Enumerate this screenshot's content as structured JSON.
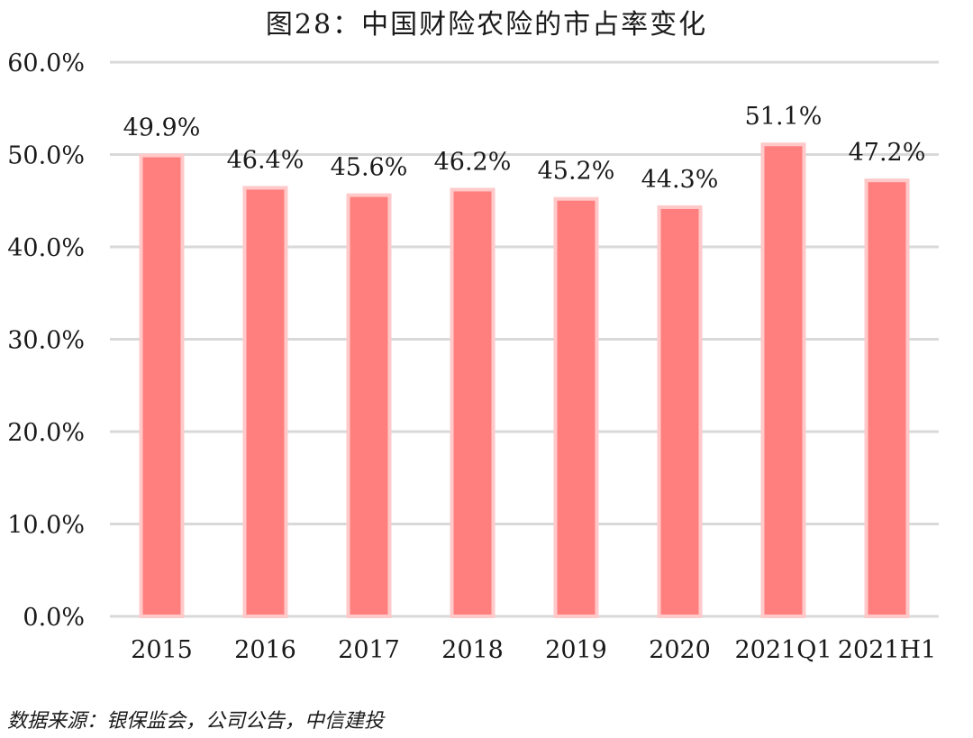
{
  "chart_data": {
    "type": "bar",
    "title": "图28：中国财险农险的市占率变化",
    "categories": [
      "2015",
      "2016",
      "2017",
      "2018",
      "2019",
      "2020",
      "2021Q1",
      "2021H1"
    ],
    "values": [
      49.9,
      46.4,
      45.6,
      46.2,
      45.2,
      44.3,
      51.1,
      47.2
    ],
    "value_labels": [
      "49.9%",
      "46.4%",
      "45.6%",
      "46.2%",
      "45.2%",
      "44.3%",
      "51.1%",
      "47.2%"
    ],
    "y_ticks": [
      "0.0%",
      "10.0%",
      "20.0%",
      "30.0%",
      "40.0%",
      "50.0%",
      "60.0%"
    ],
    "ylim": [
      0,
      60
    ],
    "xlabel": "",
    "ylabel": "",
    "grid": true,
    "legend": "none",
    "colors": {
      "bar_fill": "#ff7f7f",
      "bar_stroke": "#ffc9c9",
      "grid": "#d9d9d9",
      "text": "#1a1a1a"
    }
  },
  "source": "数据来源：银保监会，公司公告，中信建投"
}
